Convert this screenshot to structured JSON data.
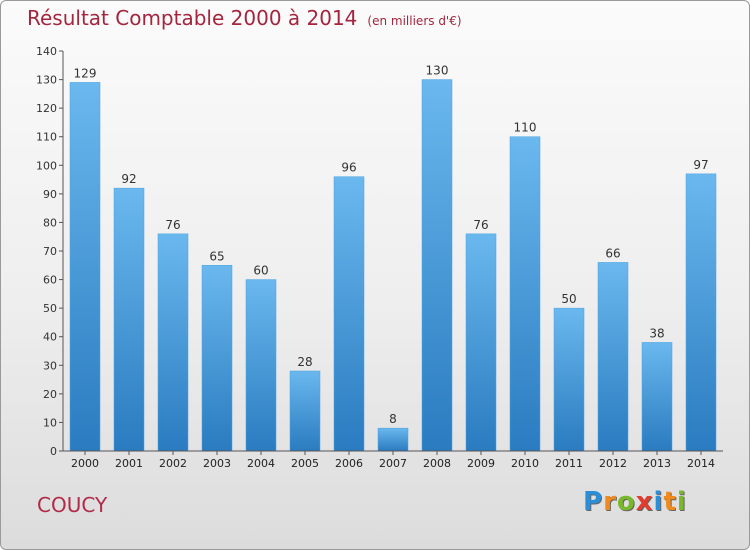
{
  "title": "Résultat Comptable 2000 à 2014",
  "subtitle": "(en milliers d'€)",
  "commune": "COUCY",
  "brand": {
    "letters": [
      "P",
      "r",
      "o",
      "x",
      "i",
      "t",
      "i"
    ],
    "colors": [
      "#2a8fd8",
      "#f08a1c",
      "#79b82a",
      "#e23c2c",
      "#2a8fd8",
      "#f08a1c",
      "#79b82a"
    ]
  },
  "colors": {
    "bar_light": "#6ab8ee",
    "bar_dark": "#2a7bc0",
    "title": "#a3263e"
  },
  "chart_data": {
    "type": "bar",
    "categories": [
      "2000",
      "2001",
      "2002",
      "2003",
      "2004",
      "2005",
      "2006",
      "2007",
      "2008",
      "2009",
      "2010",
      "2011",
      "2012",
      "2013",
      "2014"
    ],
    "values": [
      129,
      92,
      76,
      65,
      60,
      28,
      96,
      8,
      130,
      76,
      110,
      50,
      66,
      38,
      97
    ],
    "ylim": [
      0,
      140
    ],
    "yticks": [
      0,
      10,
      20,
      30,
      40,
      50,
      60,
      70,
      80,
      90,
      100,
      110,
      120,
      130,
      140
    ],
    "xlabel": "",
    "ylabel": "",
    "grid": false,
    "data_labels": true
  }
}
